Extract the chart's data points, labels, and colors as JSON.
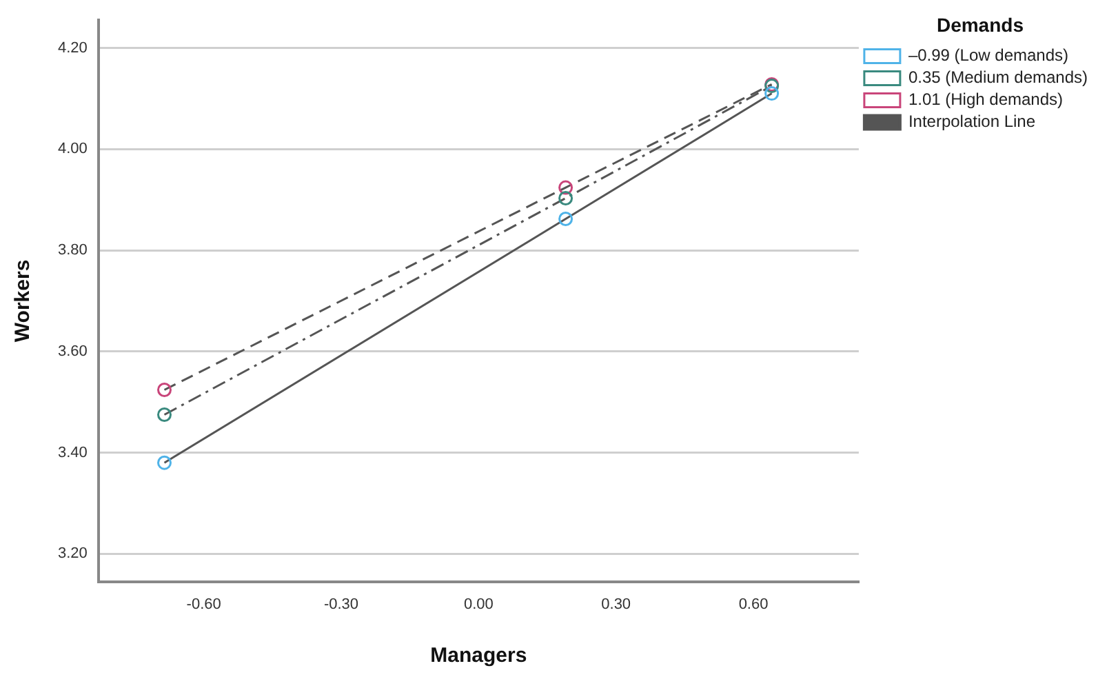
{
  "chart_data": {
    "type": "line",
    "xlabel": "Managers",
    "ylabel": "Workers",
    "legend_title": "Demands",
    "xlim": [
      -0.83,
      0.83
    ],
    "xticks": [
      {
        "value": -0.6,
        "label": "-0.60"
      },
      {
        "value": -0.3,
        "label": "-0.30"
      },
      {
        "value": 0,
        "label": "0.00"
      },
      {
        "value": 0.3,
        "label": "0.30"
      },
      {
        "value": 0.6,
        "label": "0.60"
      }
    ],
    "ylim": [
      3.145,
      4.255
    ],
    "yticks": [
      {
        "value": 3.2,
        "label": "3.20"
      },
      {
        "value": 3.4,
        "label": "3.40"
      },
      {
        "value": 3.6,
        "label": "3.60"
      },
      {
        "value": 3.8,
        "label": "3.80"
      },
      {
        "value": 4.0,
        "label": "4.00"
      },
      {
        "value": 4.2,
        "label": "4.20"
      }
    ],
    "grid": "y",
    "legend": "top right",
    "marker": "circle",
    "x": [
      -0.686,
      0.19,
      0.64
    ],
    "series": [
      {
        "name": "–0.99 (Low demands)",
        "color": "#4fb3e8",
        "line_style": "solid",
        "values": [
          3.38,
          3.862,
          4.11
        ]
      },
      {
        "name": "0.35 (Medium demands)",
        "color": "#3a8a7f",
        "line_style": "dashdot",
        "values": [
          3.475,
          3.903,
          4.125
        ]
      },
      {
        "name": "1.01 (High demands)",
        "color": "#c9457a",
        "line_style": "dashed",
        "values": [
          3.524,
          3.924,
          4.128
        ]
      }
    ],
    "annotations": [
      "Interpolation Line"
    ]
  }
}
